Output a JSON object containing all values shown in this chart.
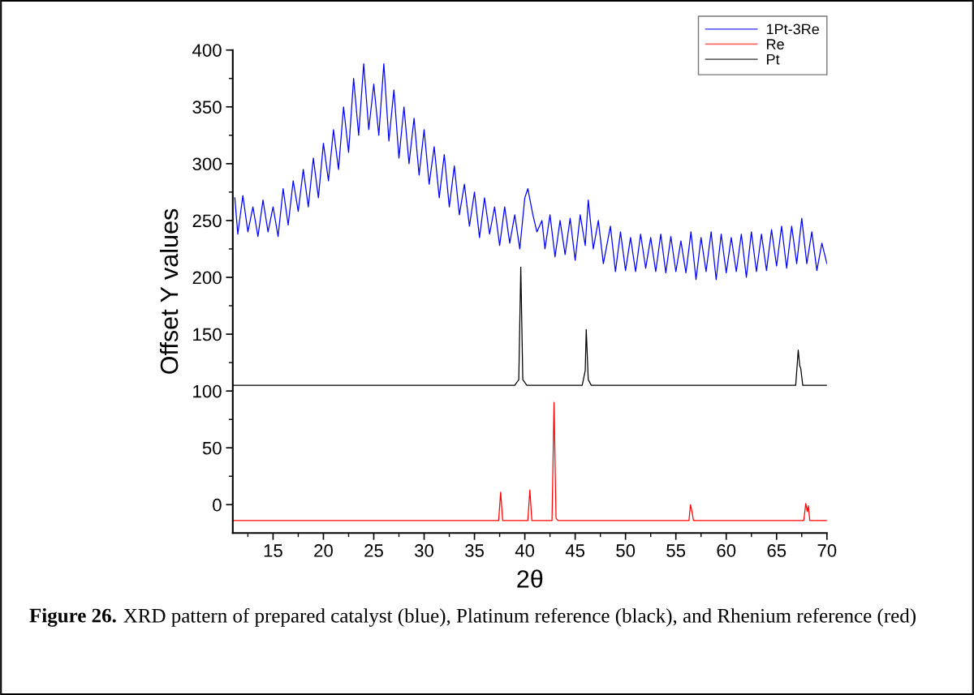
{
  "chart_data": {
    "type": "line",
    "xlabel": "2θ",
    "ylabel": "Offset Y values",
    "xlim": [
      11,
      70
    ],
    "ylim": [
      -25,
      400
    ],
    "xticks": [
      15,
      20,
      25,
      30,
      35,
      40,
      45,
      50,
      55,
      60,
      65,
      70
    ],
    "yticks": [
      0,
      50,
      100,
      150,
      200,
      250,
      300,
      350,
      400
    ],
    "grid": false,
    "legend": "top right",
    "marker": "none",
    "line_style": "solid",
    "annotations": [
      "Figure 26.",
      "XRD pattern of prepared catalyst (blue), Platinum reference (black), and Rhenium reference (red)"
    ],
    "series": [
      {
        "name": "1Pt-3Re",
        "color": "#0000ff",
        "x": [
          11.2,
          11.5,
          12,
          12.5,
          13,
          13.5,
          14,
          14.5,
          15,
          15.5,
          16,
          16.5,
          17,
          17.5,
          18,
          18.5,
          19,
          19.5,
          20,
          20.5,
          21,
          21.5,
          22,
          22.5,
          23,
          23.5,
          24,
          24.5,
          25,
          25.5,
          26,
          26.5,
          27,
          27.5,
          28,
          28.5,
          29,
          29.5,
          30,
          30.5,
          31,
          31.5,
          32,
          32.5,
          33,
          33.5,
          34,
          34.5,
          35,
          35.5,
          36,
          36.5,
          37,
          37.5,
          38,
          38.5,
          39,
          39.5,
          40,
          40.3,
          40.8,
          41.2,
          41.7,
          42,
          42.5,
          43,
          43.5,
          44,
          44.5,
          45,
          45.5,
          46,
          46.3,
          46.8,
          47.3,
          47.8,
          48.5,
          49,
          49.5,
          50,
          50.5,
          51,
          51.5,
          52,
          52.5,
          53,
          53.5,
          54,
          54.5,
          55,
          55.5,
          56,
          56.5,
          57,
          57.5,
          58,
          58.5,
          59,
          59.5,
          60,
          60.5,
          61,
          61.5,
          62,
          62.5,
          63,
          63.5,
          64,
          64.5,
          65,
          65.5,
          66,
          66.5,
          67,
          67.5,
          68,
          68.5,
          69,
          69.5,
          70
        ],
        "values": [
          270,
          238,
          272,
          240,
          262,
          236,
          268,
          240,
          262,
          236,
          278,
          246,
          285,
          258,
          295,
          262,
          305,
          270,
          318,
          285,
          330,
          295,
          350,
          310,
          375,
          325,
          388,
          330,
          370,
          325,
          388,
          320,
          365,
          305,
          350,
          300,
          340,
          290,
          330,
          282,
          315,
          270,
          308,
          262,
          298,
          255,
          282,
          245,
          275,
          235,
          270,
          238,
          262,
          228,
          262,
          230,
          255,
          225,
          270,
          278,
          255,
          240,
          250,
          225,
          255,
          218,
          250,
          220,
          252,
          215,
          255,
          228,
          268,
          225,
          250,
          212,
          245,
          205,
          240,
          206,
          235,
          205,
          238,
          208,
          235,
          205,
          238,
          204,
          236,
          205,
          232,
          204,
          240,
          198,
          235,
          205,
          240,
          198,
          238,
          204,
          235,
          205,
          238,
          200,
          240,
          205,
          238,
          206,
          242,
          210,
          245,
          208,
          245,
          212,
          252,
          212,
          240,
          206,
          230,
          212
        ]
      },
      {
        "name": "Re",
        "color": "#ff0000",
        "x": [
          11,
          37.4,
          37.6,
          37.8,
          40.3,
          40.5,
          40.7,
          42.7,
          42.9,
          43.1,
          43.3,
          56.3,
          56.45,
          56.6,
          56.75,
          67.7,
          67.9,
          68.05,
          68.15,
          68.3,
          70
        ],
        "values": [
          -14,
          -14,
          11,
          -14,
          -14,
          13,
          -14,
          -14,
          90,
          -12,
          -14,
          -14,
          0,
          -6,
          -14,
          -14,
          1,
          -6,
          -1,
          -14,
          -14
        ]
      },
      {
        "name": "Pt",
        "color": "#000000",
        "x": [
          11,
          39.0,
          39.4,
          39.6,
          39.8,
          40.2,
          45.7,
          46.0,
          46.1,
          46.3,
          46.6,
          66.9,
          67.15,
          67.3,
          67.4,
          67.6,
          70
        ],
        "values": [
          105,
          105,
          110,
          209,
          110,
          105,
          105,
          118,
          154,
          110,
          105,
          105,
          136,
          122,
          120,
          105,
          105
        ]
      }
    ]
  }
}
